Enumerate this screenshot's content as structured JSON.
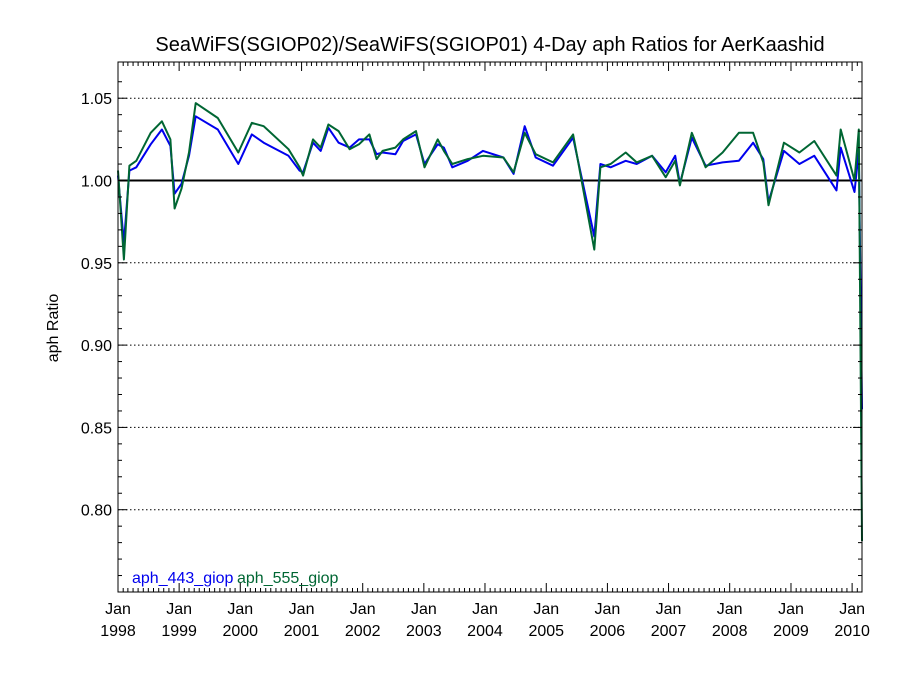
{
  "chart_data": {
    "type": "line",
    "title": "SeaWiFS(SGIOP02)/SeaWiFS(SGIOP01) 4-Day aph Ratios for AerKaashid",
    "xlabel": "",
    "ylabel": "aph Ratio",
    "xlim": [
      "1998-01-01",
      "2010-03-01"
    ],
    "ylim": [
      0.75,
      1.072
    ],
    "x_ticks": [
      {
        "date": "1998-01-01",
        "month": "Jan",
        "year": "1998"
      },
      {
        "date": "1999-01-01",
        "month": "Jan",
        "year": "1999"
      },
      {
        "date": "2000-01-01",
        "month": "Jan",
        "year": "2000"
      },
      {
        "date": "2001-01-01",
        "month": "Jan",
        "year": "2001"
      },
      {
        "date": "2002-01-01",
        "month": "Jan",
        "year": "2002"
      },
      {
        "date": "2003-01-01",
        "month": "Jan",
        "year": "2003"
      },
      {
        "date": "2004-01-01",
        "month": "Jan",
        "year": "2004"
      },
      {
        "date": "2005-01-01",
        "month": "Jan",
        "year": "2005"
      },
      {
        "date": "2006-01-01",
        "month": "Jan",
        "year": "2006"
      },
      {
        "date": "2007-01-01",
        "month": "Jan",
        "year": "2007"
      },
      {
        "date": "2008-01-01",
        "month": "Jan",
        "year": "2008"
      },
      {
        "date": "2009-01-01",
        "month": "Jan",
        "year": "2009"
      },
      {
        "date": "2010-01-01",
        "month": "Jan",
        "year": "2010"
      }
    ],
    "y_ticks": [
      {
        "value": 0.8,
        "label": "0.80"
      },
      {
        "value": 0.85,
        "label": "0.85"
      },
      {
        "value": 0.9,
        "label": "0.90"
      },
      {
        "value": 0.95,
        "label": "0.95"
      },
      {
        "value": 1.0,
        "label": "1.00"
      },
      {
        "value": 1.05,
        "label": "1.05"
      }
    ],
    "grid": {
      "horizontal_dotted": true,
      "vertical": false
    },
    "reference_line": 1.0,
    "legend": {
      "placement": "bottom-left"
    },
    "series": [
      {
        "name": "aph_443_giop",
        "color": "#0000ee",
        "points": [
          [
            "1998-01-01",
            1.003
          ],
          [
            "1998-02-05",
            0.962
          ],
          [
            "1998-03-10",
            1.006
          ],
          [
            "1998-04-20",
            1.008
          ],
          [
            "1998-07-15",
            1.022
          ],
          [
            "1998-09-20",
            1.031
          ],
          [
            "1998-11-10",
            1.021
          ],
          [
            "1998-12-05",
            0.992
          ],
          [
            "1999-01-15",
            0.998
          ],
          [
            "1999-03-01",
            1.015
          ],
          [
            "1999-04-10",
            1.039
          ],
          [
            "1999-08-20",
            1.031
          ],
          [
            "1999-12-20",
            1.01
          ],
          [
            "2000-03-10",
            1.028
          ],
          [
            "2000-05-20",
            1.023
          ],
          [
            "2000-10-15",
            1.015
          ],
          [
            "2000-12-20",
            1.006
          ],
          [
            "2001-01-10",
            1.005
          ],
          [
            "2001-03-10",
            1.023
          ],
          [
            "2001-04-25",
            1.018
          ],
          [
            "2001-06-10",
            1.032
          ],
          [
            "2001-08-10",
            1.023
          ],
          [
            "2001-10-15",
            1.02
          ],
          [
            "2001-12-10",
            1.025
          ],
          [
            "2002-02-10",
            1.025
          ],
          [
            "2002-03-25",
            1.016
          ],
          [
            "2002-04-30",
            1.017
          ],
          [
            "2002-07-15",
            1.016
          ],
          [
            "2002-08-30",
            1.024
          ],
          [
            "2002-11-15",
            1.028
          ],
          [
            "2003-01-05",
            1.01
          ],
          [
            "2003-03-25",
            1.022
          ],
          [
            "2003-05-01",
            1.02
          ],
          [
            "2003-06-20",
            1.008
          ],
          [
            "2003-09-20",
            1.012
          ],
          [
            "2003-12-20",
            1.018
          ],
          [
            "2004-04-20",
            1.014
          ],
          [
            "2004-06-20",
            1.004
          ],
          [
            "2004-08-25",
            1.033
          ],
          [
            "2004-10-30",
            1.014
          ],
          [
            "2005-02-10",
            1.009
          ],
          [
            "2005-06-10",
            1.026
          ],
          [
            "2005-10-15",
            0.966
          ],
          [
            "2005-11-20",
            1.01
          ],
          [
            "2006-01-20",
            1.008
          ],
          [
            "2006-04-20",
            1.012
          ],
          [
            "2006-06-25",
            1.01
          ],
          [
            "2006-09-25",
            1.015
          ],
          [
            "2006-12-15",
            1.005
          ],
          [
            "2007-02-10",
            1.015
          ],
          [
            "2007-03-10",
            0.998
          ],
          [
            "2007-05-20",
            1.026
          ],
          [
            "2007-08-10",
            1.009
          ],
          [
            "2007-11-20",
            1.011
          ],
          [
            "2008-02-25",
            1.012
          ],
          [
            "2008-05-20",
            1.023
          ],
          [
            "2008-07-20",
            1.013
          ],
          [
            "2008-08-20",
            0.987
          ],
          [
            "2008-11-20",
            1.018
          ],
          [
            "2009-02-20",
            1.01
          ],
          [
            "2009-05-20",
            1.015
          ],
          [
            "2009-09-30",
            0.994
          ],
          [
            "2009-10-25",
            1.02
          ],
          [
            "2010-01-15",
            0.993
          ],
          [
            "2010-02-10",
            1.018
          ],
          [
            "2010-03-01",
            0.861
          ]
        ]
      },
      {
        "name": "aph_555_giop",
        "color": "#006633",
        "points": [
          [
            "1998-01-01",
            1.006
          ],
          [
            "1998-02-05",
            0.952
          ],
          [
            "1998-03-10",
            1.009
          ],
          [
            "1998-04-20",
            1.012
          ],
          [
            "1998-07-15",
            1.029
          ],
          [
            "1998-09-20",
            1.036
          ],
          [
            "1998-11-10",
            1.025
          ],
          [
            "1998-12-05",
            0.983
          ],
          [
            "1999-01-15",
            0.995
          ],
          [
            "1999-03-01",
            1.017
          ],
          [
            "1999-04-10",
            1.047
          ],
          [
            "1999-08-20",
            1.038
          ],
          [
            "1999-12-20",
            1.017
          ],
          [
            "2000-03-10",
            1.035
          ],
          [
            "2000-05-20",
            1.033
          ],
          [
            "2000-10-15",
            1.019
          ],
          [
            "2000-12-20",
            1.008
          ],
          [
            "2001-01-10",
            1.003
          ],
          [
            "2001-03-10",
            1.025
          ],
          [
            "2001-04-25",
            1.02
          ],
          [
            "2001-06-10",
            1.034
          ],
          [
            "2001-08-10",
            1.03
          ],
          [
            "2001-10-15",
            1.019
          ],
          [
            "2001-12-10",
            1.022
          ],
          [
            "2002-02-10",
            1.028
          ],
          [
            "2002-03-25",
            1.013
          ],
          [
            "2002-04-30",
            1.018
          ],
          [
            "2002-07-15",
            1.02
          ],
          [
            "2002-08-30",
            1.025
          ],
          [
            "2002-11-15",
            1.03
          ],
          [
            "2003-01-05",
            1.008
          ],
          [
            "2003-03-25",
            1.025
          ],
          [
            "2003-05-01",
            1.018
          ],
          [
            "2003-06-20",
            1.01
          ],
          [
            "2003-09-20",
            1.013
          ],
          [
            "2003-12-20",
            1.015
          ],
          [
            "2004-04-20",
            1.014
          ],
          [
            "2004-06-20",
            1.005
          ],
          [
            "2004-08-25",
            1.029
          ],
          [
            "2004-10-30",
            1.016
          ],
          [
            "2005-02-10",
            1.011
          ],
          [
            "2005-06-10",
            1.028
          ],
          [
            "2005-10-15",
            0.958
          ],
          [
            "2005-11-20",
            1.008
          ],
          [
            "2006-01-20",
            1.01
          ],
          [
            "2006-04-20",
            1.017
          ],
          [
            "2006-06-25",
            1.011
          ],
          [
            "2006-09-25",
            1.015
          ],
          [
            "2006-12-15",
            1.002
          ],
          [
            "2007-02-10",
            1.012
          ],
          [
            "2007-03-10",
            0.997
          ],
          [
            "2007-05-20",
            1.029
          ],
          [
            "2007-08-10",
            1.008
          ],
          [
            "2007-11-20",
            1.017
          ],
          [
            "2008-02-25",
            1.029
          ],
          [
            "2008-05-20",
            1.029
          ],
          [
            "2008-07-20",
            1.011
          ],
          [
            "2008-08-20",
            0.985
          ],
          [
            "2008-11-20",
            1.023
          ],
          [
            "2009-02-20",
            1.017
          ],
          [
            "2009-05-20",
            1.024
          ],
          [
            "2009-09-30",
            1.003
          ],
          [
            "2009-10-25",
            1.031
          ],
          [
            "2010-01-15",
            1.0
          ],
          [
            "2010-02-10",
            1.031
          ],
          [
            "2010-03-01",
            0.781
          ]
        ]
      }
    ]
  }
}
